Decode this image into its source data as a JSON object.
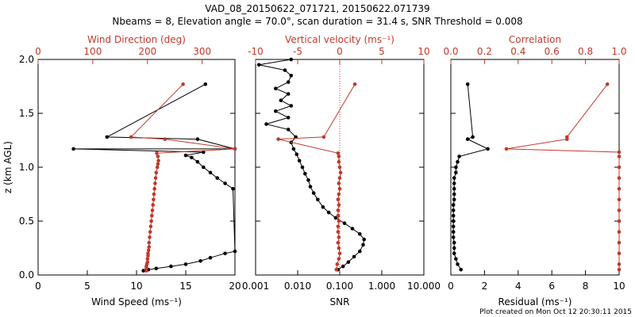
{
  "header": {
    "title_line1": "VAD_08_20150622_071721, 20150622.071739",
    "title_line2": "Nbeams = 8, Elevation angle = 70.0°, scan duration = 31.4 s, SNR Threshold = 0.008"
  },
  "footer": {
    "created": "Plot created on Mon Oct 12 20:30:11 2015"
  },
  "colors": {
    "black": "#000000",
    "red": "#c0392b"
  },
  "chart_data": [
    {
      "type": "scatter",
      "ylabel": "z (km AGL)",
      "ylim": [
        0,
        2.0
      ],
      "yticks": [
        "0.0",
        "0.5",
        "1.0",
        "1.5",
        "2.0"
      ],
      "bottom_axis": {
        "label": "Wind Speed (ms⁻¹)",
        "range": [
          0,
          20
        ],
        "ticks": [
          "0",
          "5",
          "10",
          "15",
          "20"
        ]
      },
      "top_axis": {
        "label": "Wind Direction (deg)",
        "range": [
          0,
          360
        ],
        "ticks": [
          "0",
          "100",
          "200",
          "300"
        ]
      },
      "series": [
        {
          "axis": "bottom",
          "color": "#000000",
          "points": [
            [
              10.7,
              0.04
            ],
            [
              11.2,
              0.05
            ],
            [
              12.0,
              0.06
            ],
            [
              13.5,
              0.08
            ],
            [
              15.0,
              0.1
            ],
            [
              16.5,
              0.13
            ],
            [
              17.5,
              0.16
            ],
            [
              19.0,
              0.2
            ],
            [
              20.0,
              0.22
            ],
            [
              19.8,
              0.8
            ],
            [
              19.0,
              0.85
            ],
            [
              18.2,
              0.9
            ],
            [
              17.5,
              0.95
            ],
            [
              16.8,
              1.0
            ],
            [
              16.2,
              1.05
            ],
            [
              15.6,
              1.09
            ],
            [
              15.0,
              1.11
            ],
            [
              16.8,
              1.14
            ],
            [
              3.6,
              1.17
            ],
            [
              20.0,
              1.17
            ],
            [
              16.2,
              1.26
            ],
            [
              7.0,
              1.28
            ],
            [
              17.0,
              1.77
            ]
          ]
        },
        {
          "axis": "top",
          "color": "#c0392b",
          "points": [
            [
              198,
              0.04
            ],
            [
              198,
              0.06
            ],
            [
              198,
              0.08
            ],
            [
              199,
              0.1
            ],
            [
              200,
              0.12
            ],
            [
              200,
              0.15
            ],
            [
              201,
              0.18
            ],
            [
              201,
              0.2
            ],
            [
              202,
              0.23
            ],
            [
              203,
              0.26
            ],
            [
              203,
              0.3
            ],
            [
              204,
              0.35
            ],
            [
              205,
              0.4
            ],
            [
              206,
              0.45
            ],
            [
              207,
              0.5
            ],
            [
              208,
              0.55
            ],
            [
              209,
              0.6
            ],
            [
              210,
              0.65
            ],
            [
              211,
              0.7
            ],
            [
              212,
              0.75
            ],
            [
              213,
              0.8
            ],
            [
              214,
              0.85
            ],
            [
              215,
              0.9
            ],
            [
              216,
              0.95
            ],
            [
              218,
              1.0
            ],
            [
              219,
              1.03
            ],
            [
              220,
              1.06
            ],
            [
              219,
              1.1
            ],
            [
              217,
              1.13
            ],
            [
              360,
              1.17
            ],
            [
              232,
              1.26
            ],
            [
              170,
              1.28
            ],
            [
              265,
              1.77
            ]
          ]
        }
      ]
    },
    {
      "type": "scatter",
      "bottom_axis": {
        "label": "SNR",
        "scale": "log",
        "range": [
          0.001,
          10
        ],
        "ticks": [
          "0.001",
          "0.010",
          "0.100",
          "1.000",
          "10.000"
        ]
      },
      "top_axis": {
        "label": "Vertical velocity (ms⁻¹)",
        "range": [
          -10,
          10
        ],
        "ticks": [
          "-10",
          "-5",
          "0",
          "5",
          "10"
        ]
      },
      "series": [
        {
          "axis": "bottom",
          "color": "#000000",
          "points": [
            [
              0.09,
              0.05
            ],
            [
              0.12,
              0.08
            ],
            [
              0.16,
              0.12
            ],
            [
              0.22,
              0.17
            ],
            [
              0.3,
              0.22
            ],
            [
              0.36,
              0.28
            ],
            [
              0.38,
              0.33
            ],
            [
              0.3,
              0.38
            ],
            [
              0.2,
              0.43
            ],
            [
              0.13,
              0.48
            ],
            [
              0.08,
              0.53
            ],
            [
              0.055,
              0.58
            ],
            [
              0.04,
              0.63
            ],
            [
              0.03,
              0.7
            ],
            [
              0.024,
              0.76
            ],
            [
              0.02,
              0.82
            ],
            [
              0.018,
              0.88
            ],
            [
              0.015,
              0.94
            ],
            [
              0.013,
              1.0
            ],
            [
              0.011,
              1.06
            ],
            [
              0.0095,
              1.12
            ],
            [
              0.008,
              1.17
            ],
            [
              0.007,
              1.23
            ],
            [
              0.009,
              1.28
            ],
            [
              0.006,
              1.35
            ],
            [
              0.0018,
              1.4
            ],
            [
              0.006,
              1.46
            ],
            [
              0.003,
              1.52
            ],
            [
              0.007,
              1.57
            ],
            [
              0.004,
              1.62
            ],
            [
              0.006,
              1.68
            ],
            [
              0.003,
              1.73
            ],
            [
              0.006,
              1.79
            ],
            [
              0.007,
              1.85
            ],
            [
              0.005,
              1.9
            ],
            [
              0.0012,
              1.95
            ],
            [
              0.007,
              2.0
            ]
          ]
        },
        {
          "axis": "top",
          "color": "#c0392b",
          "points": [
            [
              -0.4,
              0.05
            ],
            [
              -0.3,
              0.1
            ],
            [
              -0.1,
              0.15
            ],
            [
              0,
              0.2
            ],
            [
              -0.1,
              0.25
            ],
            [
              -0.2,
              0.3
            ],
            [
              -0.1,
              0.35
            ],
            [
              -0.2,
              0.4
            ],
            [
              -0.2,
              0.45
            ],
            [
              -0.1,
              0.5
            ],
            [
              -0.2,
              0.55
            ],
            [
              -0.2,
              0.6
            ],
            [
              -0.1,
              0.65
            ],
            [
              -0.2,
              0.7
            ],
            [
              -0.1,
              0.75
            ],
            [
              0,
              0.8
            ],
            [
              -0.1,
              0.85
            ],
            [
              0,
              0.9
            ],
            [
              0.1,
              0.95
            ],
            [
              0,
              1.0
            ],
            [
              -0.1,
              1.05
            ],
            [
              -0.1,
              1.1
            ],
            [
              -0.2,
              1.13
            ],
            [
              -7.3,
              1.26
            ],
            [
              -1.9,
              1.28
            ],
            [
              1.8,
              1.77
            ]
          ]
        }
      ]
    },
    {
      "type": "scatter",
      "bottom_axis": {
        "label": "Residual (ms⁻¹)",
        "range": [
          0,
          10
        ],
        "ticks": [
          "0",
          "2",
          "4",
          "6",
          "8",
          "10"
        ]
      },
      "top_axis": {
        "label": "Correlation",
        "range": [
          0,
          1.0
        ],
        "ticks": [
          "0.0",
          "0.2",
          "0.4",
          "0.6",
          "0.8",
          "1.0"
        ]
      },
      "series": [
        {
          "axis": "bottom",
          "color": "#000000",
          "points": [
            [
              0.6,
              0.05
            ],
            [
              0.4,
              0.1
            ],
            [
              0.3,
              0.15
            ],
            [
              0.2,
              0.2
            ],
            [
              0.2,
              0.25
            ],
            [
              0.2,
              0.3
            ],
            [
              0.15,
              0.35
            ],
            [
              0.15,
              0.4
            ],
            [
              0.15,
              0.45
            ],
            [
              0.15,
              0.5
            ],
            [
              0.15,
              0.55
            ],
            [
              0.15,
              0.6
            ],
            [
              0.15,
              0.65
            ],
            [
              0.2,
              0.7
            ],
            [
              0.2,
              0.75
            ],
            [
              0.2,
              0.8
            ],
            [
              0.2,
              0.85
            ],
            [
              0.2,
              0.9
            ],
            [
              0.3,
              0.95
            ],
            [
              0.3,
              1.0
            ],
            [
              0.4,
              1.05
            ],
            [
              0.5,
              1.1
            ],
            [
              2.2,
              1.17
            ],
            [
              1.0,
              1.26
            ],
            [
              1.3,
              1.28
            ],
            [
              1.0,
              1.77
            ]
          ]
        },
        {
          "axis": "top",
          "color": "#c0392b",
          "points": [
            [
              1.0,
              0.05
            ],
            [
              1.0,
              0.1
            ],
            [
              1.0,
              0.2
            ],
            [
              1.0,
              0.3
            ],
            [
              1.0,
              0.4
            ],
            [
              1.0,
              0.5
            ],
            [
              1.0,
              0.6
            ],
            [
              1.0,
              0.7
            ],
            [
              1.0,
              0.8
            ],
            [
              1.0,
              0.9
            ],
            [
              1.0,
              1.0
            ],
            [
              1.0,
              1.1
            ],
            [
              1.0,
              1.14
            ],
            [
              0.33,
              1.17
            ],
            [
              0.69,
              1.26
            ],
            [
              0.69,
              1.28
            ],
            [
              0.93,
              1.77
            ]
          ]
        }
      ]
    }
  ]
}
